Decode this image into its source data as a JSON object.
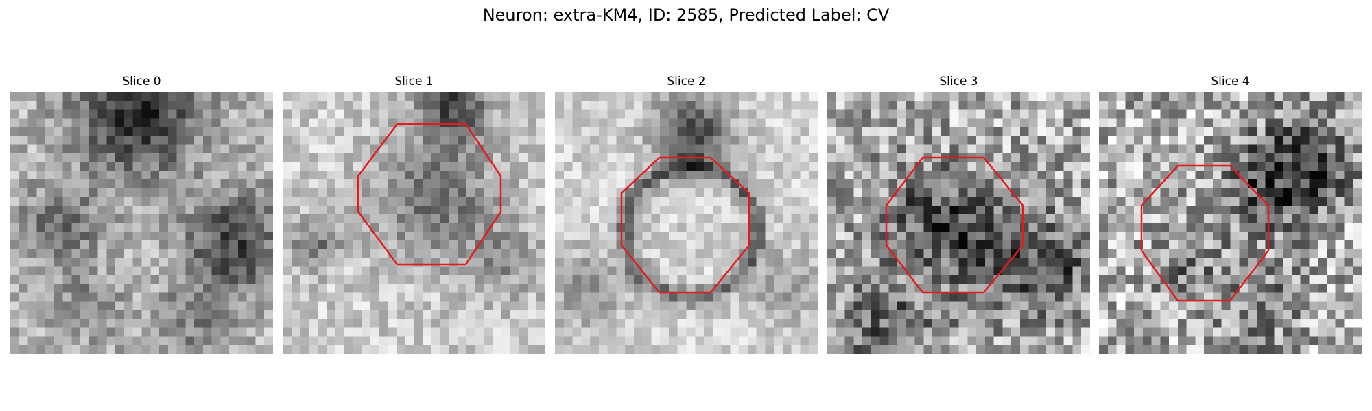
{
  "figure": {
    "title": "Neuron: extra-KM4, ID: 2585, Predicted Label: CV"
  },
  "colors": {
    "outline": "#e41a1c",
    "background": "#ffffff"
  },
  "panels": [
    {
      "title": "Slice 0",
      "seed": 11,
      "has_outline": false
    },
    {
      "title": "Slice 1",
      "seed": 23,
      "has_outline": true
    },
    {
      "title": "Slice 2",
      "seed": 37,
      "has_outline": true
    },
    {
      "title": "Slice 3",
      "seed": 51,
      "has_outline": true
    },
    {
      "title": "Slice 4",
      "seed": 67,
      "has_outline": true
    }
  ]
}
